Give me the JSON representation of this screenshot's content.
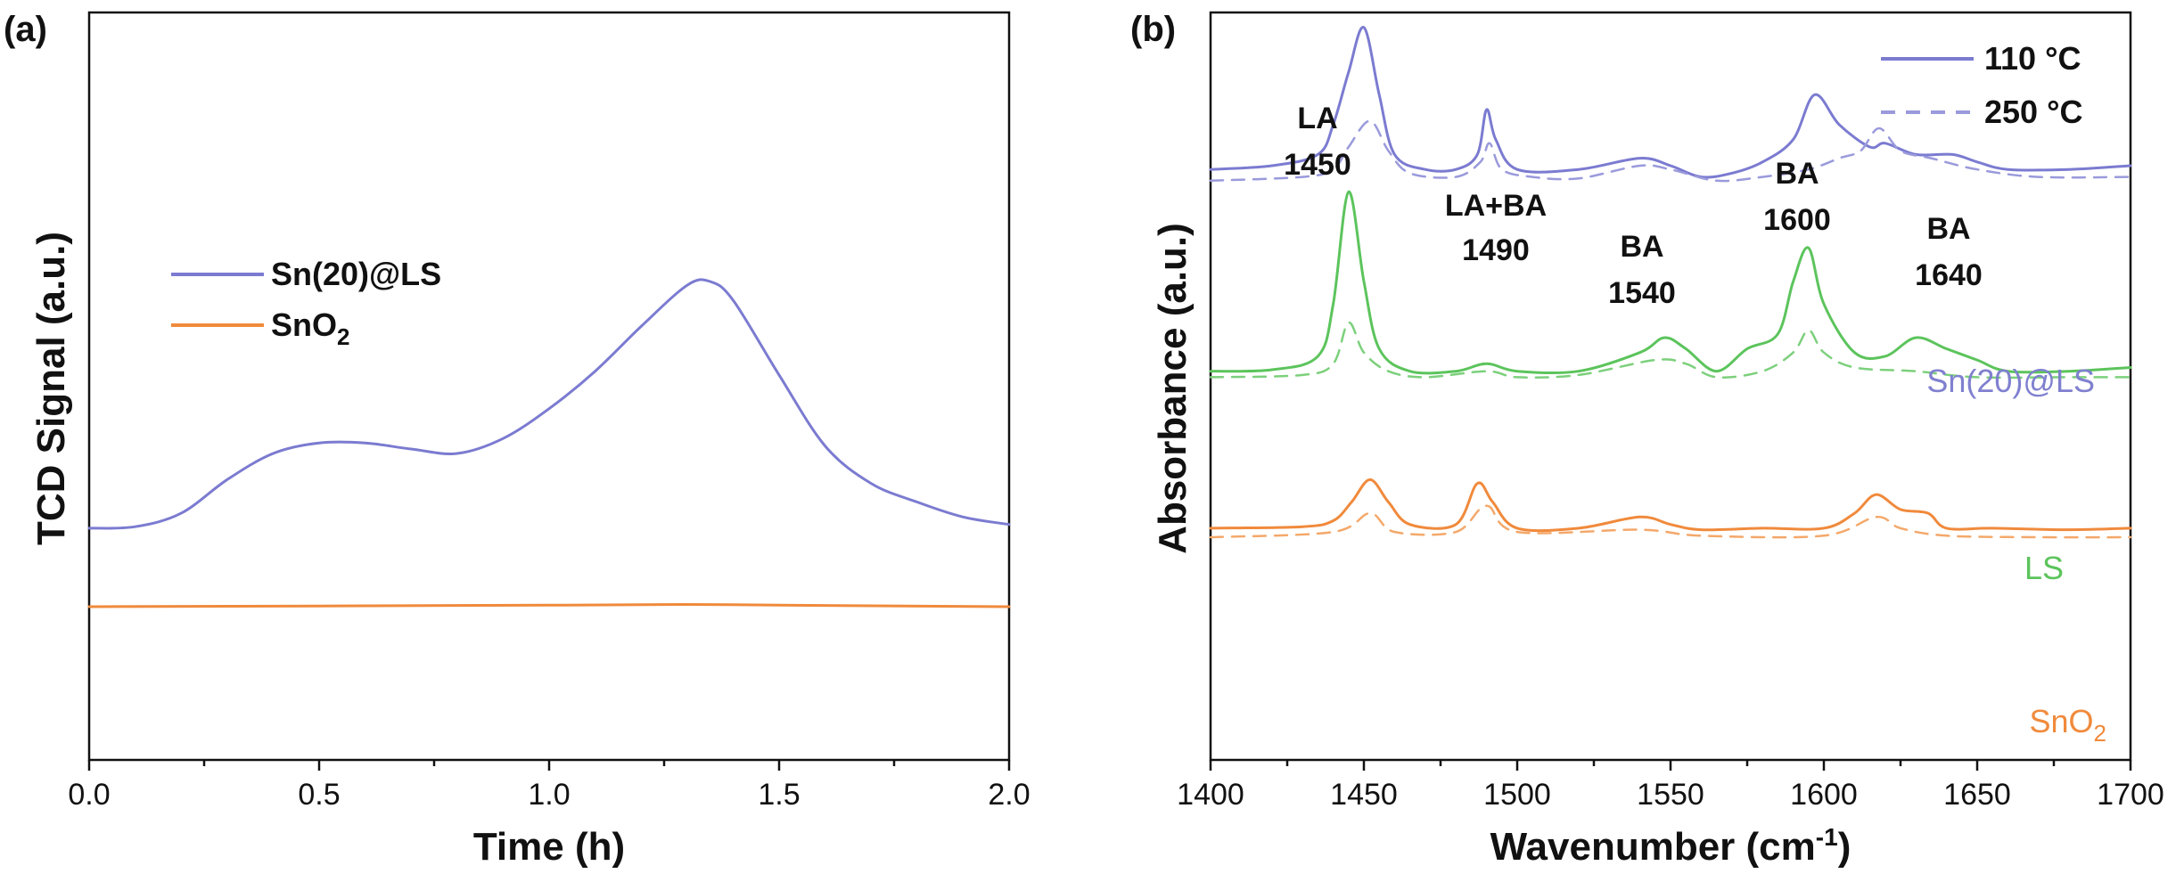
{
  "chart_data": [
    {
      "panel_label": "(a)",
      "type": "line",
      "xlabel": "Time (h)",
      "ylabel": "TCD Signal (a.u.)",
      "xlim": [
        0.0,
        2.0
      ],
      "ylim": [
        0,
        1
      ],
      "xticks": [
        "0.0",
        "0.5",
        "1.0",
        "1.5",
        "2.0"
      ],
      "yticks_shown": false,
      "legend": {
        "placement": "center-left"
      },
      "series": [
        {
          "name": "Sn(20)@LS",
          "color": "#7b7bd1",
          "x": [
            0.0,
            0.1,
            0.2,
            0.3,
            0.4,
            0.5,
            0.6,
            0.7,
            0.8,
            0.9,
            1.0,
            1.1,
            1.2,
            1.3,
            1.35,
            1.4,
            1.5,
            1.6,
            1.7,
            1.8,
            1.9,
            2.0
          ],
          "values": [
            0.31,
            0.312,
            0.33,
            0.375,
            0.41,
            0.424,
            0.424,
            0.416,
            0.41,
            0.43,
            0.47,
            0.52,
            0.58,
            0.635,
            0.64,
            0.615,
            0.515,
            0.42,
            0.37,
            0.345,
            0.325,
            0.315
          ]
        },
        {
          "name": "SnO2",
          "name_html": "SnO<tspan baseline-shift='sub' font-size='24'>2</tspan>",
          "color": "#f08a3c",
          "x": [
            0.0,
            0.5,
            1.0,
            1.3,
            1.5,
            2.0
          ],
          "values": [
            0.205,
            0.206,
            0.207,
            0.208,
            0.207,
            0.205
          ]
        }
      ]
    },
    {
      "panel_label": "(b)",
      "type": "line",
      "xlabel": "Wavenumber (cm",
      "xlabel_sup": "-1",
      "xlabel_end": ")",
      "ylabel": "Absorbance (a.u.)",
      "xlim": [
        1400,
        1700
      ],
      "ylim": [
        0,
        1
      ],
      "xticks": [
        "1400",
        "1450",
        "1500",
        "1550",
        "1600",
        "1650",
        "1700"
      ],
      "yticks_shown": false,
      "legend": {
        "placement": "top-right",
        "entries": [
          {
            "label": "110 °C",
            "style": "solid"
          },
          {
            "label": "250 °C",
            "style": "dashed"
          }
        ]
      },
      "peak_annotations": [
        {
          "line1": "LA",
          "line2": "1450"
        },
        {
          "line1": "LA+BA",
          "line2": "1490"
        },
        {
          "line1": "BA",
          "line2": "1540"
        },
        {
          "line1": "BA",
          "line2": "1600"
        },
        {
          "line1": "BA",
          "line2": "1640"
        }
      ],
      "sample_labels": [
        {
          "text": "Sn(20)@LS",
          "color": "#8080d0"
        },
        {
          "text": "LS",
          "color": "#5cc45c"
        },
        {
          "text": "SnO",
          "sub": "2",
          "color": "#f08a3c"
        }
      ],
      "series": [
        {
          "name": "Sn(20)@LS 110 °C",
          "color": "#7b7bd1",
          "style": "solid",
          "x": [
            1400,
            1420,
            1435,
            1440,
            1445,
            1450,
            1455,
            1460,
            1470,
            1480,
            1487,
            1490,
            1493,
            1500,
            1520,
            1540,
            1550,
            1560,
            1570,
            1580,
            1590,
            1597,
            1605,
            1615,
            1620,
            1630,
            1642,
            1650,
            1660,
            1680,
            1700
          ],
          "values": [
            0.79,
            0.795,
            0.81,
            0.85,
            0.92,
            0.98,
            0.89,
            0.81,
            0.79,
            0.79,
            0.81,
            0.87,
            0.83,
            0.79,
            0.79,
            0.805,
            0.795,
            0.78,
            0.785,
            0.8,
            0.83,
            0.89,
            0.85,
            0.82,
            0.825,
            0.81,
            0.81,
            0.8,
            0.79,
            0.79,
            0.795
          ]
        },
        {
          "name": "Sn(20)@LS 250 °C",
          "color": "#9a9adc",
          "style": "dashed",
          "x": [
            1400,
            1430,
            1440,
            1445,
            1452,
            1458,
            1465,
            1480,
            1488,
            1491,
            1495,
            1505,
            1520,
            1540,
            1550,
            1565,
            1580,
            1595,
            1605,
            1612,
            1618,
            1625,
            1635,
            1650,
            1670,
            1700
          ],
          "values": [
            0.775,
            0.78,
            0.79,
            0.82,
            0.855,
            0.815,
            0.785,
            0.78,
            0.8,
            0.825,
            0.79,
            0.78,
            0.778,
            0.795,
            0.79,
            0.775,
            0.78,
            0.79,
            0.805,
            0.815,
            0.845,
            0.815,
            0.805,
            0.79,
            0.78,
            0.78
          ]
        },
        {
          "name": "LS 110 °C",
          "color": "#5cc45c",
          "style": "solid",
          "x": [
            1400,
            1420,
            1435,
            1440,
            1445,
            1450,
            1455,
            1465,
            1480,
            1490,
            1500,
            1520,
            1540,
            1548,
            1555,
            1565,
            1575,
            1585,
            1590,
            1595,
            1600,
            1610,
            1620,
            1630,
            1640,
            1650,
            1660,
            1680,
            1700
          ],
          "values": [
            0.52,
            0.522,
            0.54,
            0.61,
            0.76,
            0.64,
            0.55,
            0.52,
            0.52,
            0.53,
            0.52,
            0.52,
            0.545,
            0.565,
            0.55,
            0.52,
            0.55,
            0.57,
            0.64,
            0.685,
            0.61,
            0.545,
            0.54,
            0.565,
            0.55,
            0.535,
            0.52,
            0.52,
            0.525
          ]
        },
        {
          "name": "LS 250 °C",
          "color": "#7cd07c",
          "style": "dashed",
          "x": [
            1400,
            1430,
            1440,
            1445,
            1450,
            1458,
            1470,
            1490,
            1500,
            1520,
            1545,
            1555,
            1565,
            1580,
            1590,
            1595,
            1600,
            1610,
            1630,
            1650,
            1680,
            1700
          ],
          "values": [
            0.512,
            0.515,
            0.53,
            0.585,
            0.545,
            0.52,
            0.512,
            0.52,
            0.512,
            0.515,
            0.535,
            0.53,
            0.512,
            0.52,
            0.545,
            0.575,
            0.545,
            0.525,
            0.52,
            0.512,
            0.512,
            0.512
          ]
        },
        {
          "name": "SnO2 110 °C",
          "color": "#f08a3c",
          "style": "solid",
          "x": [
            1400,
            1430,
            1440,
            1446,
            1452,
            1458,
            1465,
            1480,
            1487,
            1492,
            1500,
            1520,
            1540,
            1550,
            1560,
            1580,
            1600,
            1610,
            1617,
            1625,
            1634,
            1640,
            1655,
            1680,
            1700
          ],
          "values": [
            0.31,
            0.312,
            0.32,
            0.345,
            0.375,
            0.345,
            0.315,
            0.315,
            0.37,
            0.345,
            0.31,
            0.31,
            0.325,
            0.315,
            0.308,
            0.31,
            0.31,
            0.33,
            0.355,
            0.335,
            0.33,
            0.31,
            0.31,
            0.308,
            0.31
          ]
        },
        {
          "name": "SnO2 250 °C",
          "color": "#f4a86a",
          "style": "dashed",
          "x": [
            1400,
            1440,
            1452,
            1460,
            1480,
            1490,
            1500,
            1540,
            1560,
            1600,
            1617,
            1625,
            1640,
            1670,
            1700
          ],
          "values": [
            0.298,
            0.305,
            0.33,
            0.305,
            0.305,
            0.34,
            0.305,
            0.308,
            0.3,
            0.3,
            0.325,
            0.31,
            0.3,
            0.298,
            0.298
          ]
        }
      ]
    }
  ]
}
